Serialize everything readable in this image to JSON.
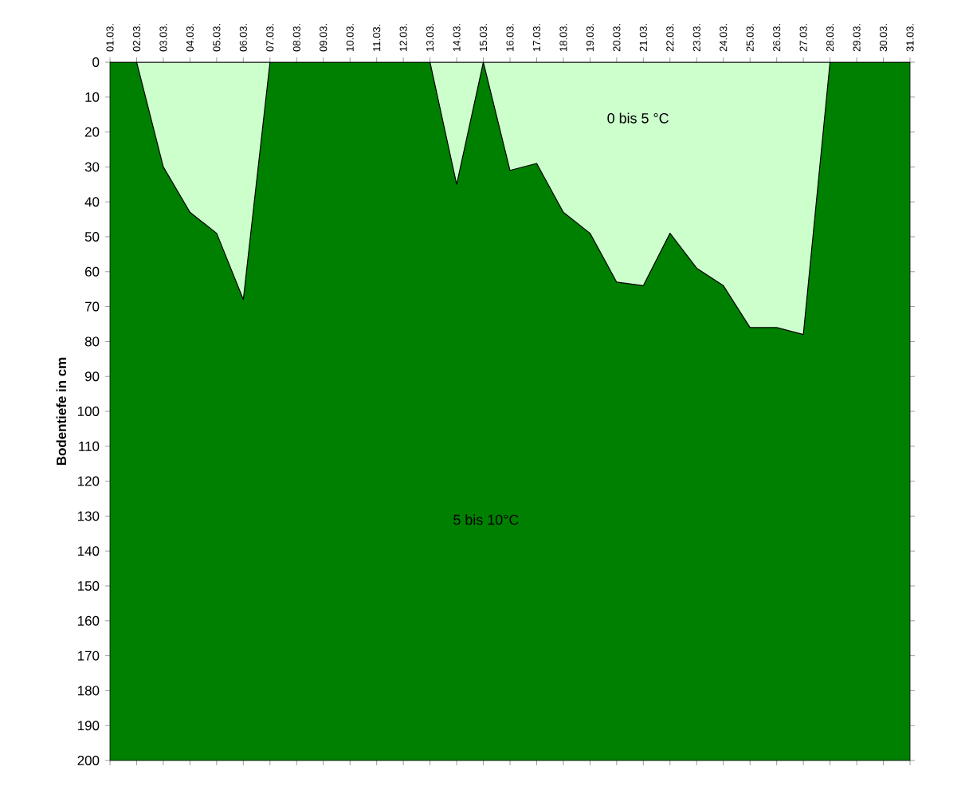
{
  "chart_data": {
    "type": "area",
    "ylabel": "Bodentiefe in cm",
    "categories": [
      "01.03.",
      "02.03.",
      "03.03.",
      "04.03.",
      "05.03.",
      "06.03.",
      "07.03.",
      "08.03.",
      "09.03.",
      "10.03.",
      "11.03.",
      "12.03.",
      "13.03.",
      "14.03.",
      "15.03.",
      "16.03.",
      "17.03.",
      "18.03.",
      "19.03.",
      "20.03.",
      "21.03.",
      "22.03.",
      "23.03.",
      "24.03.",
      "25.03.",
      "26.03.",
      "27.03.",
      "28.03.",
      "29.03.",
      "30.03.",
      "31.03."
    ],
    "series": [
      {
        "name": "0 bis 5 °C",
        "color": "#ccffcc",
        "values": [
          0,
          0,
          30,
          43,
          49,
          68,
          0,
          0,
          0,
          0,
          0,
          0,
          0,
          35,
          0,
          31,
          29,
          43,
          49,
          63,
          64,
          49,
          59,
          64,
          76,
          76,
          78,
          0,
          0,
          0,
          0
        ]
      }
    ],
    "bands": [
      {
        "axis": "y",
        "from": 0,
        "to": 200,
        "label": "5 bis 10°C",
        "color": "#008000"
      }
    ],
    "ylim": [
      200,
      0
    ],
    "yticks": [
      0,
      10,
      20,
      30,
      40,
      50,
      60,
      70,
      80,
      90,
      100,
      110,
      120,
      130,
      140,
      150,
      160,
      170,
      180,
      190,
      200
    ],
    "grid": false,
    "legend": false
  }
}
